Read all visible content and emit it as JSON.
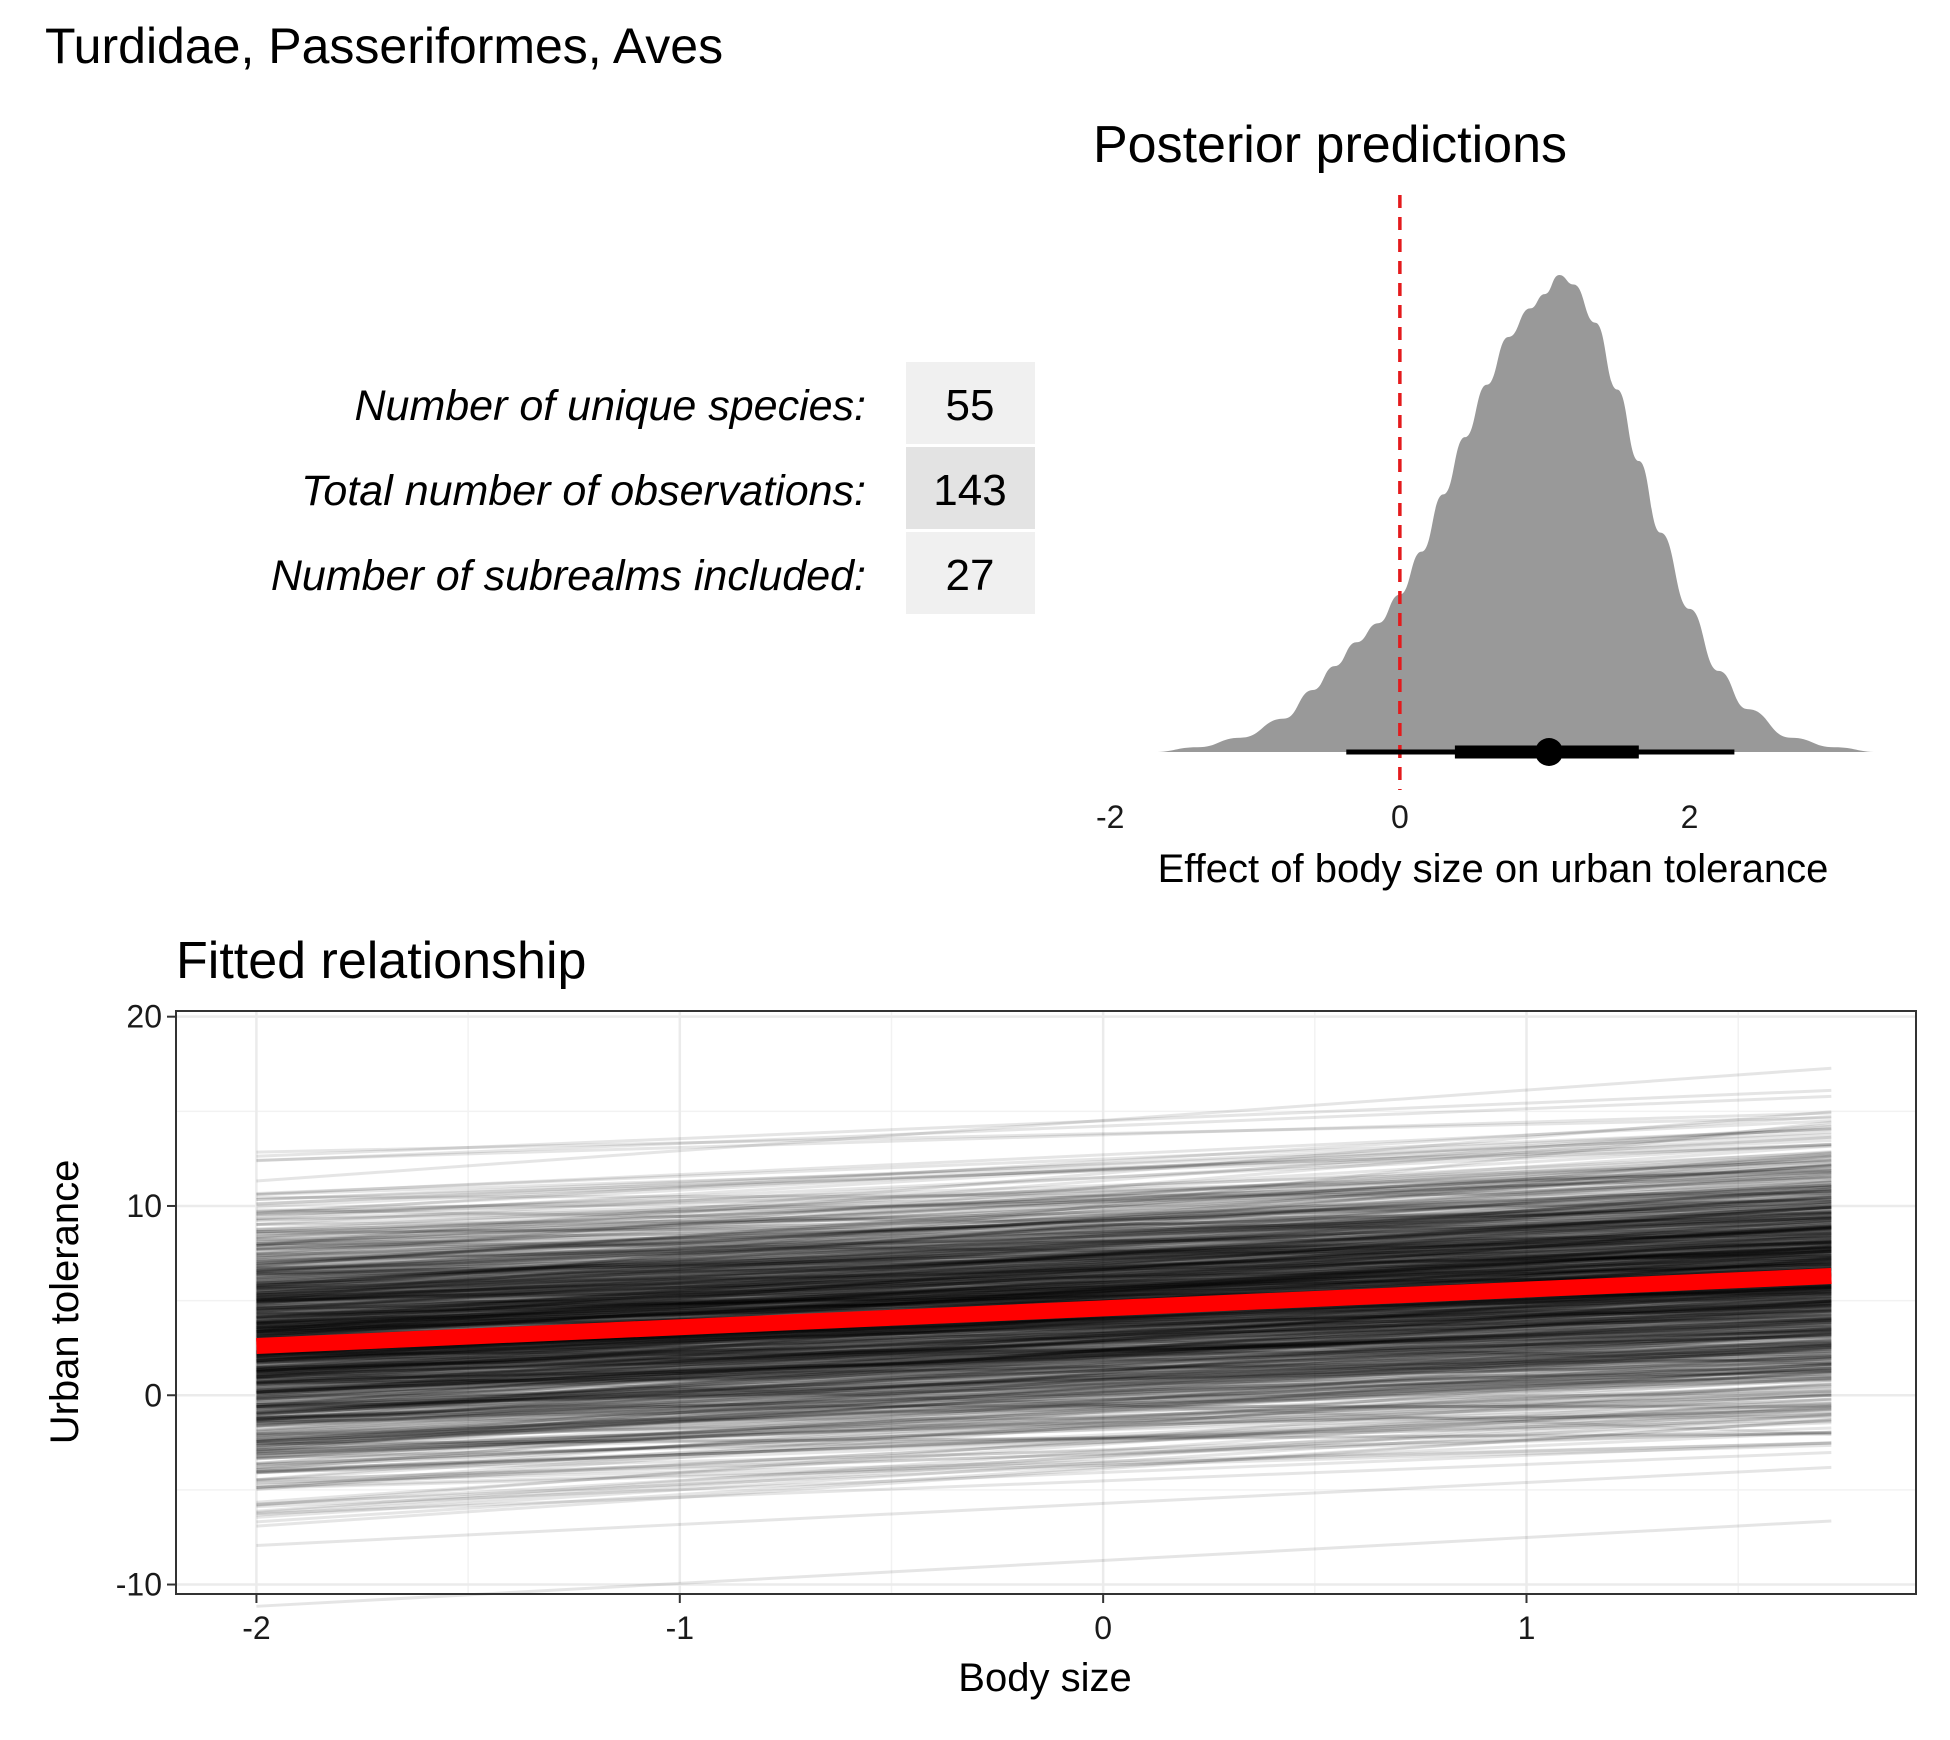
{
  "title": "Turdidae, Passeriformes, Aves",
  "summary_table": {
    "rows": [
      {
        "label": "Number of unique species:",
        "value": "55"
      },
      {
        "label": "Total number of observations:",
        "value": "143"
      },
      {
        "label": "Number of subrealms included:",
        "value": "27"
      }
    ]
  },
  "colors": {
    "density_fill": "#999999",
    "zero_line": "#e41a1c",
    "mean_line": "#ff0000",
    "draw_line": "#000000",
    "table_light": "#f0f0f0",
    "table_dark": "#e3e3e3"
  },
  "chart_data": [
    {
      "type": "area",
      "title": "Posterior predictions",
      "xlabel": "Effect of body size on urban tolerance",
      "ylabel": "",
      "xlim": [
        -2.05,
        3.35
      ],
      "xticks": [
        "-2",
        "0",
        "2"
      ],
      "xtick_values": [
        -2,
        0,
        2
      ],
      "reference_line_x": 0,
      "density": {
        "x": [
          -1.7,
          -1.4,
          -1.1,
          -0.8,
          -0.6,
          -0.45,
          -0.3,
          -0.15,
          0.0,
          0.15,
          0.3,
          0.45,
          0.6,
          0.75,
          0.9,
          1.0,
          1.1,
          1.2,
          1.35,
          1.5,
          1.65,
          1.8,
          2.0,
          2.2,
          2.4,
          2.7,
          3.0,
          3.3
        ],
        "y": [
          0.0,
          0.01,
          0.03,
          0.07,
          0.13,
          0.18,
          0.23,
          0.27,
          0.33,
          0.42,
          0.54,
          0.66,
          0.77,
          0.87,
          0.93,
          0.96,
          1.0,
          0.98,
          0.9,
          0.76,
          0.61,
          0.46,
          0.3,
          0.17,
          0.09,
          0.03,
          0.01,
          0.0
        ]
      },
      "point_interval": {
        "point": 1.03,
        "inner": [
          0.38,
          1.65
        ],
        "outer": [
          -0.37,
          2.31
        ]
      }
    },
    {
      "type": "line",
      "title": "Fitted relationship",
      "xlabel": "Body size",
      "ylabel": "Urban tolerance",
      "xlim": [
        -2.19,
        1.92
      ],
      "ylim": [
        -10.5,
        20.3
      ],
      "xticks": [
        "-2",
        "-1",
        "0",
        "1"
      ],
      "xtick_values": [
        -2,
        -1,
        0,
        1
      ],
      "yticks": [
        "-10",
        "0",
        "10",
        "20"
      ],
      "ytick_values": [
        -10,
        0,
        10,
        20
      ],
      "grid": true,
      "x_range": [
        -2,
        1.72
      ],
      "mean_line": {
        "name": "",
        "x": [
          -2,
          1.72
        ],
        "y": [
          2.6,
          6.3
        ]
      },
      "posterior_draws": {
        "count": 1000,
        "intercept_mean": 4.6,
        "intercept_sd": 3.3,
        "slope_mean": 1.0,
        "slope_sd": 0.45
      }
    }
  ]
}
